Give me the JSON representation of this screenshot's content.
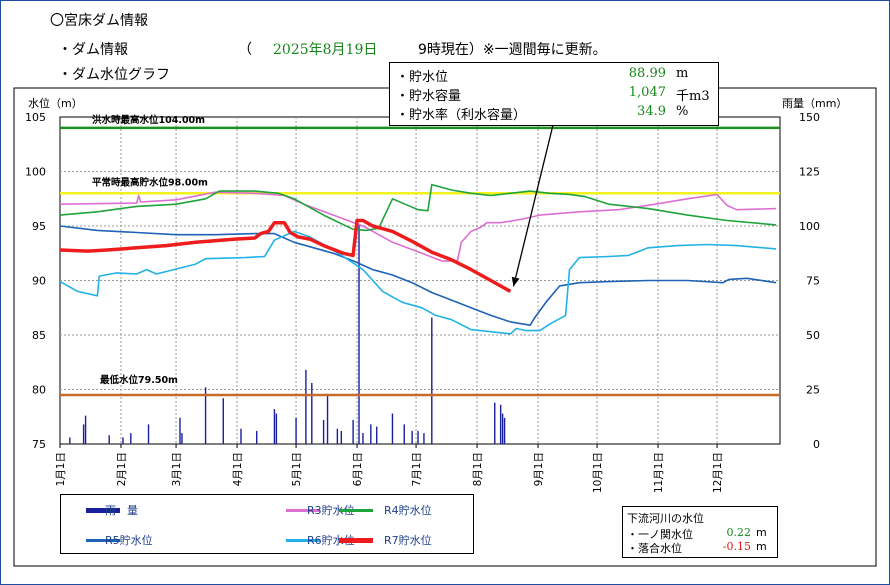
{
  "header": {
    "title": "〇宮床ダム情報",
    "sub1": "・ダム情報",
    "date_paren": "（",
    "date": "2025年8月19日",
    "time_note": "9時現在）※一週間毎に更新。",
    "sub2": "・ダム水位グラフ"
  },
  "popup": {
    "rows": [
      {
        "label": "・貯水位",
        "value": "88.99",
        "unit": "m"
      },
      {
        "label": "・貯水容量",
        "value": "1,047",
        "unit": "千m3"
      },
      {
        "label": "・貯水率（利水容量）",
        "value": "34.9",
        "unit": "%"
      }
    ]
  },
  "legend": [
    {
      "label": "雨　量",
      "color": "#1a1f9c"
    },
    {
      "label": "R3貯水位",
      "color": "#dd6fd2"
    },
    {
      "label": "R4貯水位",
      "color": "#1fa43c"
    },
    {
      "label": "R5貯水位",
      "color": "#1e63b5"
    },
    {
      "label": "R6貯水位",
      "color": "#22b2e6"
    },
    {
      "label": "R7貯水位",
      "color": "#ee1c1c"
    }
  ],
  "river": {
    "title": "下流河川の水位",
    "items": [
      {
        "label": "・一ノ関水位",
        "value": "0.22",
        "unit": "m",
        "color": "#18871a"
      },
      {
        "label": "・落合水位",
        "value": "-0.15",
        "unit": "m",
        "color": "#e01818"
      }
    ]
  },
  "chart_data": {
    "type": "line",
    "y_left_label": "水位（m）",
    "y_right_label": "雨量（mm）",
    "ylim_left": [
      75,
      105
    ],
    "ylim_right": [
      0,
      150
    ],
    "yticks_left": [
      "75",
      "80",
      "85",
      "90",
      "95",
      "100",
      "105"
    ],
    "yticks_right": [
      "0",
      "25",
      "50",
      "75",
      "100",
      "125",
      "150"
    ],
    "xticks": [
      "1月1日",
      "2月1日",
      "3月1日",
      "4月1日",
      "5月1日",
      "6月1日",
      "7月1日",
      "8月1日",
      "9月1日",
      "10月1日",
      "11月1日",
      "12月1日"
    ],
    "x_unit": "day_of_year",
    "reference_lines": [
      {
        "label": "洪水時最高水位104.00m",
        "value": 104.0,
        "color": "#1f8f1f"
      },
      {
        "label": "平常時最高貯水位98.00m",
        "value": 98.0,
        "color": "#f2f21e"
      },
      {
        "label": "最低水位79.50m",
        "value": 79.5,
        "color": "#c86a2a"
      }
    ],
    "series": [
      {
        "name": "R3貯水位",
        "color": "#dd6fd2",
        "width": 1.6,
        "points": [
          [
            1,
            97.0
          ],
          [
            40,
            97.1
          ],
          [
            41,
            97.8
          ],
          [
            42,
            97.2
          ],
          [
            60,
            97.4
          ],
          [
            80,
            98.1
          ],
          [
            100,
            98.0
          ],
          [
            115,
            97.8
          ],
          [
            125,
            97.0
          ],
          [
            140,
            96.0
          ],
          [
            155,
            95.0
          ],
          [
            170,
            93.5
          ],
          [
            185,
            92.5
          ],
          [
            195,
            91.8
          ],
          [
            203,
            91.8
          ],
          [
            205,
            93.5
          ],
          [
            210,
            94.5
          ],
          [
            215,
            94.9
          ],
          [
            218,
            95.3
          ],
          [
            225,
            95.3
          ],
          [
            235,
            95.6
          ],
          [
            245,
            96.0
          ],
          [
            265,
            96.3
          ],
          [
            285,
            96.5
          ],
          [
            300,
            96.9
          ],
          [
            320,
            97.5
          ],
          [
            335,
            97.9
          ],
          [
            340,
            96.9
          ],
          [
            345,
            96.5
          ],
          [
            365,
            96.6
          ]
        ]
      },
      {
        "name": "R4貯水位",
        "color": "#1fa43c",
        "width": 1.6,
        "points": [
          [
            1,
            96.0
          ],
          [
            20,
            96.3
          ],
          [
            40,
            96.8
          ],
          [
            60,
            97.0
          ],
          [
            75,
            97.5
          ],
          [
            82,
            98.2
          ],
          [
            100,
            98.2
          ],
          [
            112,
            98.0
          ],
          [
            120,
            97.5
          ],
          [
            135,
            96.0
          ],
          [
            150,
            94.7
          ],
          [
            157,
            94.6
          ],
          [
            163,
            94.8
          ],
          [
            170,
            97.5
          ],
          [
            183,
            96.5
          ],
          [
            188,
            96.4
          ],
          [
            190,
            98.8
          ],
          [
            200,
            98.3
          ],
          [
            210,
            98.0
          ],
          [
            220,
            97.8
          ],
          [
            240,
            98.2
          ],
          [
            250,
            98.0
          ],
          [
            260,
            97.9
          ],
          [
            268,
            97.7
          ],
          [
            280,
            97.0
          ],
          [
            300,
            96.6
          ],
          [
            320,
            96.0
          ],
          [
            340,
            95.5
          ],
          [
            365,
            95.1
          ]
        ]
      },
      {
        "name": "R5貯水位",
        "color": "#1e63b5",
        "width": 1.6,
        "points": [
          [
            1,
            95.0
          ],
          [
            20,
            94.6
          ],
          [
            40,
            94.4
          ],
          [
            60,
            94.2
          ],
          [
            80,
            94.2
          ],
          [
            100,
            94.3
          ],
          [
            110,
            94.3
          ],
          [
            120,
            93.5
          ],
          [
            130,
            93.0
          ],
          [
            140,
            92.5
          ],
          [
            150,
            91.8
          ],
          [
            160,
            91.0
          ],
          [
            170,
            90.5
          ],
          [
            180,
            89.8
          ],
          [
            190,
            88.9
          ],
          [
            200,
            88.2
          ],
          [
            210,
            87.5
          ],
          [
            220,
            86.8
          ],
          [
            230,
            86.2
          ],
          [
            240,
            85.9
          ],
          [
            242,
            86.5
          ],
          [
            248,
            88.0
          ],
          [
            255,
            89.5
          ],
          [
            265,
            89.8
          ],
          [
            280,
            89.9
          ],
          [
            300,
            90.0
          ],
          [
            320,
            90.0
          ],
          [
            338,
            89.8
          ],
          [
            341,
            90.1
          ],
          [
            350,
            90.2
          ],
          [
            365,
            89.8
          ]
        ]
      },
      {
        "name": "R6貯水位",
        "color": "#22b2e6",
        "width": 1.6,
        "points": [
          [
            1,
            89.9
          ],
          [
            10,
            89.0
          ],
          [
            20,
            88.6
          ],
          [
            21,
            90.4
          ],
          [
            30,
            90.7
          ],
          [
            40,
            90.6
          ],
          [
            45,
            91.0
          ],
          [
            50,
            90.6
          ],
          [
            70,
            91.5
          ],
          [
            75,
            92.0
          ],
          [
            95,
            92.1
          ],
          [
            105,
            92.2
          ],
          [
            110,
            93.7
          ],
          [
            120,
            94.5
          ],
          [
            128,
            94.0
          ],
          [
            135,
            93.3
          ],
          [
            145,
            92.2
          ],
          [
            155,
            91.0
          ],
          [
            165,
            89.0
          ],
          [
            175,
            88.0
          ],
          [
            185,
            87.5
          ],
          [
            192,
            86.8
          ],
          [
            200,
            86.4
          ],
          [
            210,
            85.5
          ],
          [
            220,
            85.3
          ],
          [
            230,
            85.1
          ],
          [
            233,
            85.6
          ],
          [
            238,
            85.4
          ],
          [
            245,
            85.4
          ],
          [
            250,
            86.0
          ],
          [
            258,
            86.8
          ],
          [
            260,
            91.0
          ],
          [
            265,
            92.1
          ],
          [
            280,
            92.2
          ],
          [
            290,
            92.3
          ],
          [
            300,
            93.0
          ],
          [
            315,
            93.2
          ],
          [
            330,
            93.3
          ],
          [
            345,
            93.2
          ],
          [
            365,
            92.9
          ]
        ]
      },
      {
        "name": "R7貯水位",
        "color": "#ee1c1c",
        "width": 3.5,
        "points": [
          [
            1,
            92.8
          ],
          [
            15,
            92.7
          ],
          [
            25,
            92.8
          ],
          [
            40,
            93.0
          ],
          [
            55,
            93.2
          ],
          [
            70,
            93.5
          ],
          [
            90,
            93.8
          ],
          [
            100,
            93.9
          ],
          [
            103,
            94.3
          ],
          [
            107,
            94.5
          ],
          [
            110,
            95.3
          ],
          [
            115,
            95.3
          ],
          [
            118,
            94.4
          ],
          [
            122,
            94.0
          ],
          [
            128,
            93.8
          ],
          [
            135,
            93.2
          ],
          [
            145,
            92.5
          ],
          [
            150,
            92.3
          ],
          [
            152,
            95.5
          ],
          [
            155,
            95.5
          ],
          [
            160,
            95.0
          ],
          [
            170,
            94.5
          ],
          [
            180,
            93.6
          ],
          [
            190,
            92.6
          ],
          [
            200,
            91.9
          ],
          [
            210,
            91.0
          ],
          [
            220,
            90.0
          ],
          [
            230,
            89.0
          ]
        ]
      }
    ],
    "rainfall": {
      "name": "雨　量",
      "color": "#1a1f9c",
      "points": [
        [
          6,
          3
        ],
        [
          13,
          9
        ],
        [
          14,
          13
        ],
        [
          26,
          4
        ],
        [
          33,
          3
        ],
        [
          37,
          5
        ],
        [
          46,
          9
        ],
        [
          62,
          12
        ],
        [
          63,
          5
        ],
        [
          75,
          26
        ],
        [
          84,
          21
        ],
        [
          93,
          7
        ],
        [
          101,
          6
        ],
        [
          110,
          16
        ],
        [
          111,
          14
        ],
        [
          121,
          12
        ],
        [
          126,
          34
        ],
        [
          129,
          28
        ],
        [
          135,
          11
        ],
        [
          137,
          23
        ],
        [
          142,
          7
        ],
        [
          144,
          6
        ],
        [
          150,
          11
        ],
        [
          153,
          101
        ],
        [
          155,
          5
        ],
        [
          159,
          9
        ],
        [
          162,
          8
        ],
        [
          170,
          14
        ],
        [
          176,
          9
        ],
        [
          180,
          6
        ],
        [
          183,
          6
        ],
        [
          186,
          5
        ],
        [
          190,
          58
        ],
        [
          222,
          19
        ],
        [
          225,
          18
        ],
        [
          226,
          14
        ],
        [
          227,
          12
        ]
      ]
    }
  }
}
